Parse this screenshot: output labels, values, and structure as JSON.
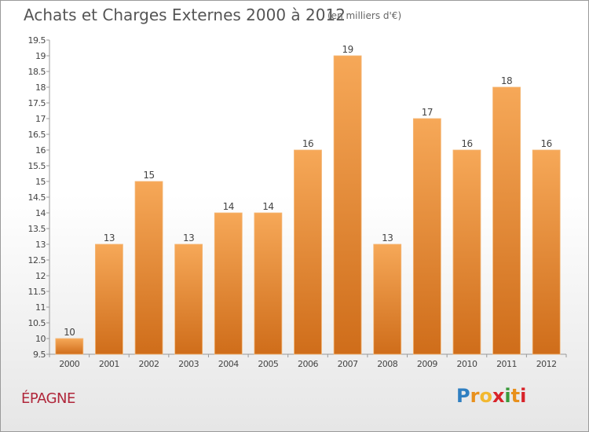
{
  "title": "Achats et Charges Externes 2000 à 2012",
  "subtitle": "(en milliers d'€)",
  "commune": "ÉPAGNE",
  "logo": {
    "text": "Proxiti",
    "colors": [
      "#2f7fc1",
      "#e8901c",
      "#f2b830",
      "#d8232a",
      "#3a9a3b",
      "#e8901c",
      "#d8232a"
    ]
  },
  "colors": {
    "bar_top": "#f6a858",
    "bar_bottom": "#cf6d1a",
    "axis": "#999999",
    "grid": "#dddddd",
    "text": "#444444"
  },
  "chart_data": {
    "type": "bar",
    "title": "Achats et Charges Externes 2000 à 2012",
    "xlabel": "",
    "ylabel": "",
    "categories": [
      "2000",
      "2001",
      "2002",
      "2003",
      "2004",
      "2005",
      "2006",
      "2007",
      "2008",
      "2009",
      "2010",
      "2011",
      "2012"
    ],
    "values": [
      10,
      13,
      15,
      13,
      14,
      14,
      16,
      19,
      13,
      17,
      16,
      18,
      16
    ],
    "data_labels": [
      "10",
      "13",
      "15",
      "13",
      "14",
      "14",
      "16",
      "19",
      "13",
      "17",
      "16",
      "18",
      "16"
    ],
    "ylim": [
      9.5,
      19.5
    ],
    "yticks": [
      "9.5",
      "10",
      "10.5",
      "11",
      "11.5",
      "12",
      "12.5",
      "13",
      "13.5",
      "14",
      "14.5",
      "15",
      "15.5",
      "16",
      "16.5",
      "17",
      "17.5",
      "18",
      "18.5",
      "19",
      "19.5"
    ],
    "grid": false,
    "legend": "none"
  }
}
